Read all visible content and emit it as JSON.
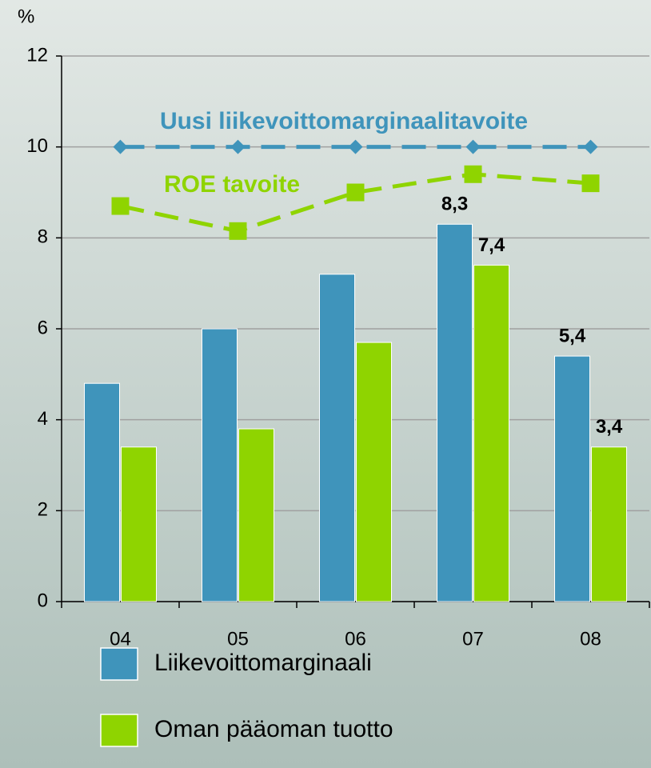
{
  "chart_data": {
    "type": "bar",
    "y_label": "%",
    "categories": [
      "04",
      "05",
      "06",
      "07",
      "08"
    ],
    "ylim": [
      0,
      12
    ],
    "yticks": [
      0,
      2,
      4,
      6,
      8,
      10,
      12
    ],
    "grid": true,
    "series": [
      {
        "name": "Liikevoittomarginaali",
        "type": "bar",
        "color": "#3f94bb",
        "values": [
          4.8,
          6.0,
          7.2,
          8.3,
          5.4
        ],
        "value_labels": [
          null,
          null,
          null,
          "8,3",
          "5,4"
        ]
      },
      {
        "name": "Oman pääoman tuotto",
        "type": "bar",
        "color": "#8fd400",
        "values": [
          3.4,
          3.8,
          5.7,
          7.4,
          3.4
        ],
        "value_labels": [
          null,
          null,
          null,
          "7,4",
          "3,4"
        ]
      },
      {
        "name": "Uusi liikevoittomarginaalitavoite",
        "type": "line",
        "marker": "diamond",
        "dashed": true,
        "color": "#3f94bb",
        "values": [
          10,
          10,
          10,
          10,
          10
        ]
      },
      {
        "name": "ROE tavoite",
        "type": "line",
        "marker": "square",
        "dashed": true,
        "color": "#8fd400",
        "values": [
          8.7,
          8.15,
          9.0,
          9.4,
          9.2
        ]
      }
    ]
  }
}
